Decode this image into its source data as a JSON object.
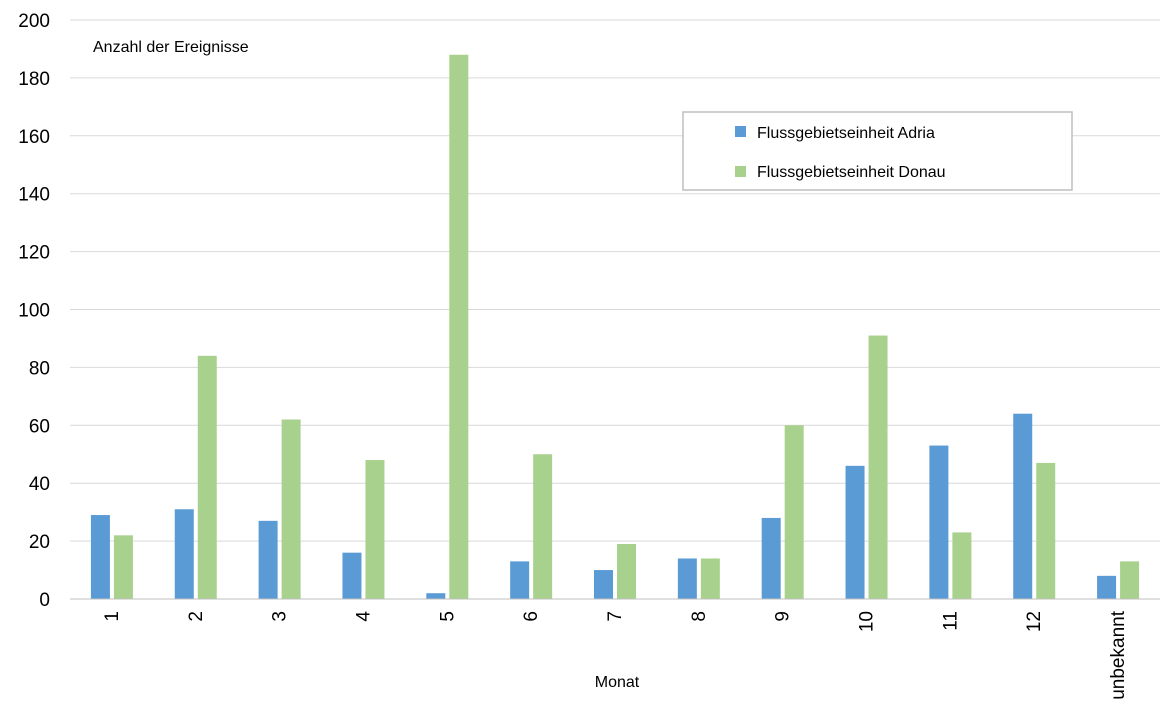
{
  "chart_data": {
    "type": "bar",
    "ylabel": "Anzahl der Ereignisse",
    "xlabel": "Monat",
    "categories": [
      "1",
      "2",
      "3",
      "4",
      "5",
      "6",
      "7",
      "8",
      "9",
      "10",
      "11",
      "12",
      "unbekannt"
    ],
    "series": [
      {
        "name": "Flussgebietseinheit Adria",
        "color": "#5b9bd5",
        "values": [
          29,
          31,
          27,
          16,
          2,
          13,
          10,
          14,
          28,
          46,
          53,
          64,
          8
        ]
      },
      {
        "name": "Flussgebietseinheit Donau",
        "color": "#a9d18e",
        "values": [
          22,
          84,
          62,
          48,
          188,
          50,
          19,
          14,
          60,
          91,
          23,
          47,
          13
        ]
      }
    ],
    "ylim": [
      0,
      200
    ],
    "yticks": [
      0,
      20,
      40,
      60,
      80,
      100,
      120,
      140,
      160,
      180,
      200
    ],
    "grid": true,
    "legend_position": "top-right"
  }
}
